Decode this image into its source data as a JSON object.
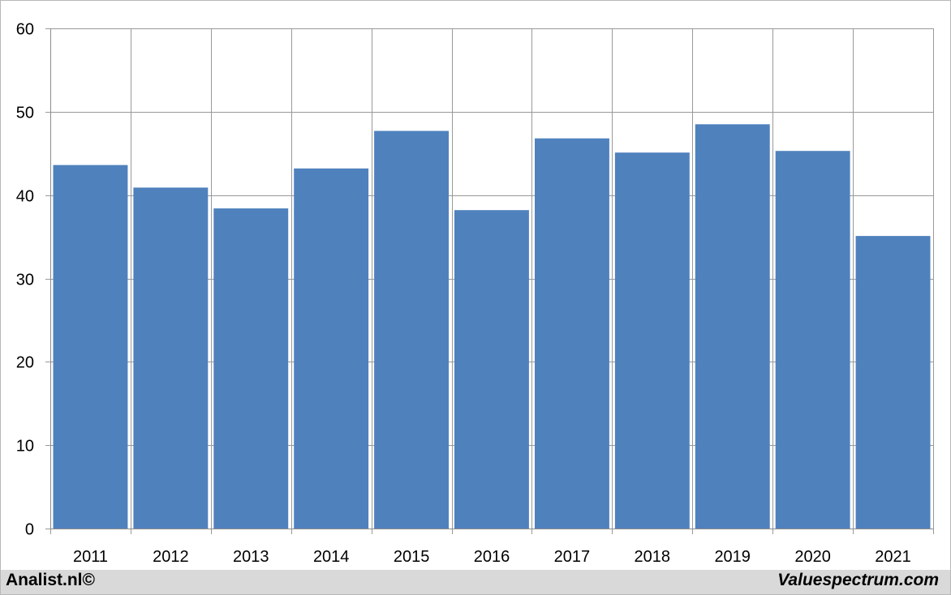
{
  "chart_data": {
    "type": "bar",
    "categories": [
      "2011",
      "2012",
      "2013",
      "2014",
      "2015",
      "2016",
      "2017",
      "2018",
      "2019",
      "2020",
      "2021"
    ],
    "values": [
      43.6,
      40.9,
      38.4,
      43.2,
      47.7,
      38.2,
      46.8,
      45.1,
      48.5,
      45.3,
      35.1
    ],
    "yticks": [
      "0",
      "10",
      "20",
      "30",
      "40",
      "50",
      "60"
    ],
    "ylim": [
      0,
      60
    ],
    "grid": true,
    "bar_color": "#4f81bd",
    "grid_color": "#999999"
  },
  "footer": {
    "left_text": "Analist.nl©",
    "right_text": "Valuespectrum.com",
    "background": "#d9d9d9"
  }
}
